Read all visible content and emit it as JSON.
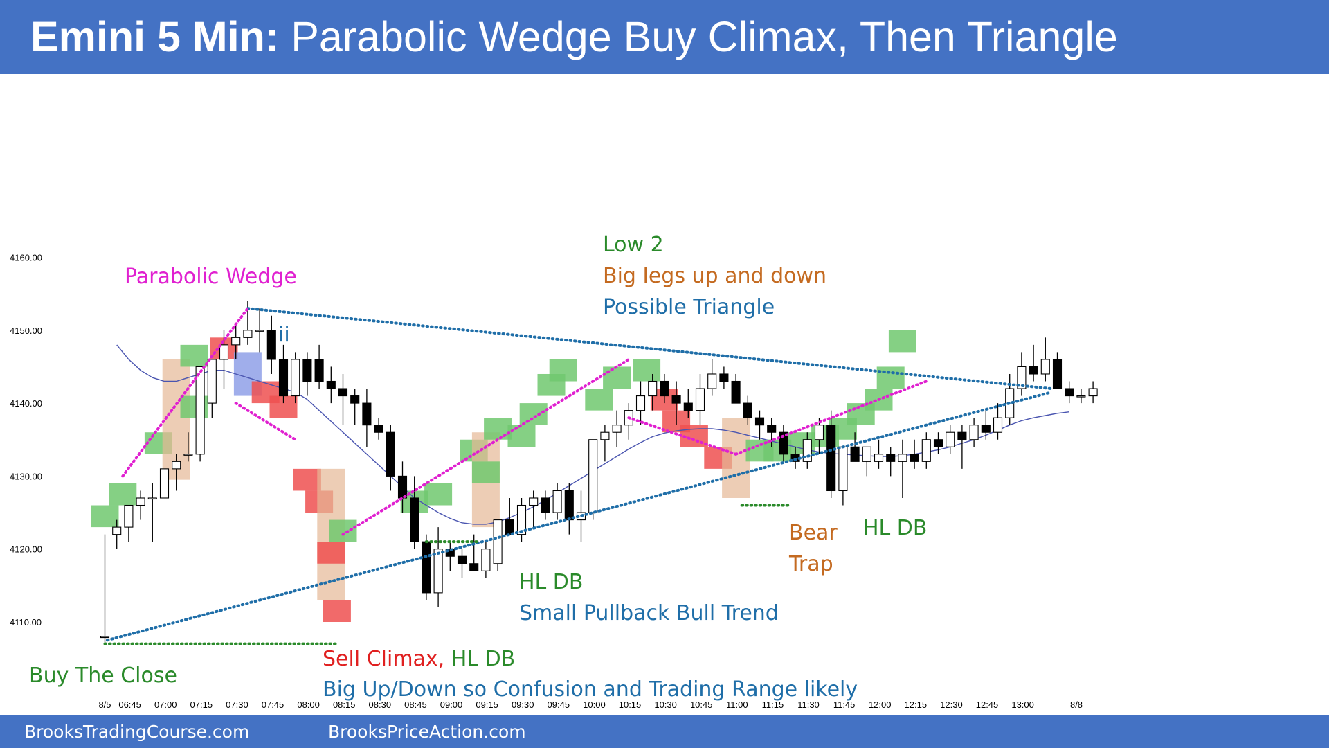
{
  "header": {
    "title_bold": "Emini 5 Min:",
    "title_rest": " Parabolic Wedge Buy Climax, Then Triangle"
  },
  "footer": {
    "left": "BrooksTradingCourse.com",
    "right": "BrooksPriceAction.com"
  },
  "colors": {
    "header_bg": "#4472c4",
    "bull_highlight": "#70c86e",
    "bear_highlight": "#ee5050",
    "climax_highlight": "#e6b896",
    "ii_highlight": "#8fa0e8",
    "ema": "#4a55b0",
    "wedge": "#e020d0",
    "trendline": "#1f6ea8",
    "double_bottom": "#2a8a2a"
  },
  "annotations": {
    "parabolic_wedge": "Parabolic Wedge",
    "ii": "ii",
    "low2": "Low 2",
    "big_legs": "Big legs up and down",
    "possible_triangle": "Possible Triangle",
    "bear": "Bear",
    "trap": "Trap",
    "hl_db_right": "HL DB",
    "hl_db_mid": "HL DB",
    "small_pullback": "Small Pullback Bull Trend",
    "sell_climax": "Sell Climax,",
    "sell_climax_hl": " HL DB",
    "big_up_down": "Big Up/Down so Confusion and Trading Range likely",
    "buy_the_close": "Buy The Close"
  },
  "chart_data": {
    "type": "candlestick",
    "title": "",
    "xlabel": "",
    "ylabel": "",
    "ylim": [
      4106,
      4168
    ],
    "y_ticks": [
      "4110.00",
      "4120.00",
      "4130.00",
      "4140.00",
      "4150.00",
      "4160.00"
    ],
    "y_tick_values": [
      4110,
      4120,
      4130,
      4140,
      4150,
      4160
    ],
    "x_ticks": [
      "8/5",
      "06:45",
      "07:00",
      "07:15",
      "07:30",
      "07:45",
      "08:00",
      "08:15",
      "08:30",
      "08:45",
      "09:00",
      "09:15",
      "09:30",
      "09:45",
      "10:00",
      "10:15",
      "10:30",
      "10:45",
      "11:00",
      "11:15",
      "11:30",
      "11:45",
      "12:00",
      "12:15",
      "12:30",
      "12:45",
      "13:00",
      "8/8"
    ],
    "x_tick_bars": [
      0,
      2.1,
      5.1,
      8.1,
      11.1,
      14.1,
      17.1,
      20.1,
      23.1,
      26.1,
      29.1,
      32.1,
      35.1,
      38.1,
      41.1,
      44.1,
      47.1,
      50.1,
      53.1,
      56.1,
      59.1,
      62.1,
      65.1,
      68.1,
      71.1,
      74.1,
      77.1,
      81.6
    ],
    "candles": [
      [
        4108,
        4122,
        4107,
        4108
      ],
      [
        4122,
        4124,
        4120,
        4123
      ],
      [
        4123,
        4126,
        4121,
        4126
      ],
      [
        4126,
        4128,
        4124,
        4127
      ],
      [
        4127,
        4129,
        4121,
        4127
      ],
      [
        4127,
        4131,
        4127,
        4131
      ],
      [
        4131,
        4133,
        4128,
        4132
      ],
      [
        4133,
        4136,
        4132,
        4133
      ],
      [
        4133,
        4145,
        4132,
        4145
      ],
      [
        4140,
        4146,
        4138,
        4146
      ],
      [
        4146,
        4150,
        4142,
        4148
      ],
      [
        4148,
        4151,
        4146,
        4149
      ],
      [
        4149,
        4154,
        4148,
        4150
      ],
      [
        4150,
        4153,
        4147,
        4150
      ],
      [
        4150,
        4152,
        4144,
        4146
      ],
      [
        4146,
        4148,
        4140,
        4141
      ],
      [
        4141,
        4147,
        4140,
        4146
      ],
      [
        4146,
        4147,
        4141,
        4143
      ],
      [
        4146,
        4148,
        4142,
        4143
      ],
      [
        4143,
        4145,
        4140,
        4142
      ],
      [
        4142,
        4144,
        4137,
        4141
      ],
      [
        4141,
        4142,
        4137,
        4140
      ],
      [
        4140,
        4142,
        4134,
        4137
      ],
      [
        4137,
        4138,
        4135,
        4136
      ],
      [
        4136,
        4137,
        4128,
        4130
      ],
      [
        4130,
        4132,
        4125,
        4127
      ],
      [
        4127,
        4130,
        4120,
        4121
      ],
      [
        4121,
        4122,
        4113,
        4114
      ],
      [
        4114,
        4123,
        4112,
        4120
      ],
      [
        4120,
        4121,
        4117,
        4119
      ],
      [
        4119,
        4120,
        4116,
        4118
      ],
      [
        4118,
        4122,
        4117,
        4117
      ],
      [
        4117,
        4121,
        4116,
        4120
      ],
      [
        4118,
        4124,
        4117,
        4124
      ],
      [
        4124,
        4127,
        4122,
        4122
      ],
      [
        4122,
        4127,
        4121,
        4126
      ],
      [
        4126,
        4128,
        4123,
        4127
      ],
      [
        4127,
        4128,
        4124,
        4125
      ],
      [
        4125,
        4129,
        4124,
        4128
      ],
      [
        4128,
        4129,
        4122,
        4124
      ],
      [
        4124,
        4128,
        4121,
        4125
      ],
      [
        4125,
        4135,
        4124,
        4135
      ],
      [
        4135,
        4137,
        4132,
        4136
      ],
      [
        4136,
        4139,
        4134,
        4137
      ],
      [
        4137,
        4140,
        4135,
        4139
      ],
      [
        4139,
        4143,
        4137,
        4141
      ],
      [
        4141,
        4144,
        4139,
        4143
      ],
      [
        4143,
        4144,
        4140,
        4141
      ],
      [
        4141,
        4143,
        4137,
        4140
      ],
      [
        4140,
        4142,
        4138,
        4139
      ],
      [
        4139,
        4144,
        4137,
        4142
      ],
      [
        4142,
        4146,
        4141,
        4144
      ],
      [
        4144,
        4145,
        4142,
        4143
      ],
      [
        4143,
        4144,
        4140,
        4140
      ],
      [
        4140,
        4141,
        4137,
        4138
      ],
      [
        4138,
        4139,
        4135,
        4137
      ],
      [
        4137,
        4138,
        4134,
        4136
      ],
      [
        4136,
        4137,
        4132,
        4133
      ],
      [
        4133,
        4134,
        4131,
        4132
      ],
      [
        4132,
        4136,
        4131,
        4135
      ],
      [
        4135,
        4138,
        4133,
        4137
      ],
      [
        4137,
        4139,
        4127,
        4128
      ],
      [
        4128,
        4134,
        4126,
        4134
      ],
      [
        4134,
        4136,
        4132,
        4132
      ],
      [
        4132,
        4134,
        4130,
        4134
      ],
      [
        4132,
        4135,
        4131,
        4133
      ],
      [
        4133,
        4134,
        4130,
        4132
      ],
      [
        4132,
        4135,
        4127,
        4133
      ],
      [
        4133,
        4135,
        4131,
        4132
      ],
      [
        4132,
        4136,
        4131,
        4135
      ],
      [
        4135,
        4136,
        4133,
        4134
      ],
      [
        4134,
        4137,
        4133,
        4136
      ],
      [
        4136,
        4137,
        4131,
        4135
      ],
      [
        4135,
        4138,
        4134,
        4137
      ],
      [
        4137,
        4139,
        4135,
        4136
      ],
      [
        4136,
        4140,
        4135,
        4138
      ],
      [
        4138,
        4144,
        4137,
        4142
      ],
      [
        4142,
        4147,
        4141,
        4145
      ],
      [
        4145,
        4148,
        4143,
        4144
      ],
      [
        4144,
        4149,
        4143,
        4146
      ],
      [
        4146,
        4147,
        4142,
        4142
      ],
      [
        4142,
        4143,
        4140,
        4141
      ],
      [
        4141,
        4142,
        4140,
        4141
      ],
      [
        4141,
        4143,
        4140,
        4142
      ]
    ],
    "ema": [
      4148,
      4146,
      4144.5,
      4143.5,
      4143,
      4143,
      4143.5,
      4144,
      4144.5,
      4144.5,
      4144,
      4143.5,
      4143,
      4142.5,
      4142,
      4141.5,
      4140.5,
      4139,
      4137.5,
      4136,
      4134.5,
      4133,
      4131.5,
      4130,
      4128.5,
      4127,
      4126,
      4125,
      4124.2,
      4123.6,
      4123.4,
      4123.4,
      4123.7,
      4124.3,
      4125,
      4125.8,
      4126.7,
      4127.7,
      4128.7,
      4129.7,
      4130.7,
      4131.7,
      4132.7,
      4133.7,
      4134.6,
      4135.4,
      4135.9,
      4136.2,
      4136.4,
      4136.5,
      4136.5,
      4136.3,
      4136,
      4135.6,
      4135.2,
      4134.8,
      4134.4,
      4134,
      4133.6,
      4133.3,
      4133.1,
      4133,
      4132.9,
      4132.8,
      4132.7,
      4132.7,
      4132.8,
      4133,
      4133.3,
      4133.6,
      4134,
      4134.5,
      4135,
      4135.6,
      4136.3,
      4137,
      4137.6,
      4138,
      4138.3,
      4138.6,
      4138.8
    ]
  }
}
